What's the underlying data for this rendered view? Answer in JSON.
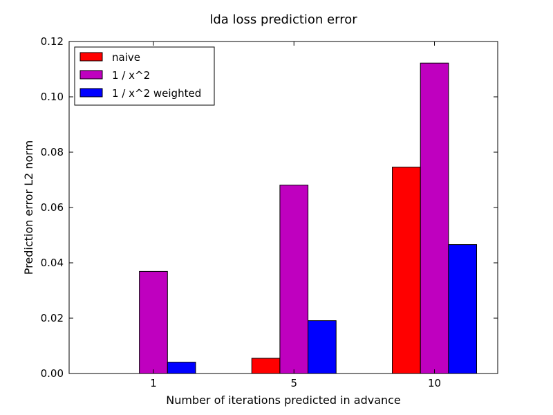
{
  "chart_data": {
    "type": "bar",
    "title": "lda loss prediction error",
    "xlabel": "Number of iterations predicted in advance",
    "ylabel": "Prediction error L2 norm",
    "categories": [
      "1",
      "5",
      "10"
    ],
    "series": [
      {
        "name": "naive",
        "color": "#ff0000",
        "values": [
          0.0,
          0.0055,
          0.0746
        ]
      },
      {
        "name": "1 / x^2",
        "color": "#bf00bf",
        "values": [
          0.0369,
          0.0681,
          0.1122
        ]
      },
      {
        "name": "1 / x^2 weighted",
        "color": "#0000ff",
        "values": [
          0.0041,
          0.0191,
          0.0466
        ]
      }
    ],
    "ylim": [
      0.0,
      0.12
    ],
    "yticks": [
      "0.00",
      "0.02",
      "0.04",
      "0.06",
      "0.08",
      "0.10",
      "0.12"
    ],
    "grid": false,
    "legend_position": "top-left"
  }
}
